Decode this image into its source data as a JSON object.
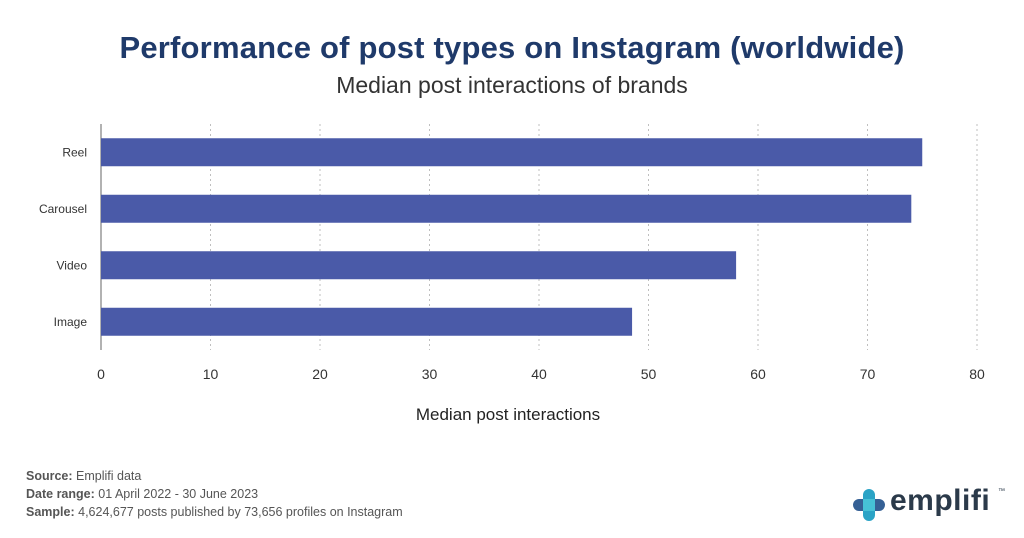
{
  "header": {
    "title": "Performance of post types on Instagram (worldwide)",
    "subtitle": "Median post interactions of brands"
  },
  "chart_data": {
    "type": "bar",
    "orientation": "horizontal",
    "categories": [
      "Reel",
      "Carousel",
      "Video",
      "Image"
    ],
    "values": [
      75,
      74,
      58,
      48.5
    ],
    "xlabel": "Median post interactions",
    "ylabel": "",
    "xlim": [
      0,
      80
    ],
    "xticks": [
      "0",
      "10",
      "20",
      "30",
      "40",
      "50",
      "60",
      "70",
      "80"
    ],
    "grid": "vertical-dotted",
    "bar_color": "#4a5aa8"
  },
  "footer": {
    "source_label": "Source:",
    "source_value": "Emplifi data",
    "date_label": "Date range:",
    "date_value": "01 April 2022 - 30 June 2023",
    "sample_label": "Sample:",
    "sample_value": "4,624,677 posts published by 73,656 profiles on Instagram"
  },
  "brand": {
    "name": "emplifi",
    "icon": "emplifi-logo-mark-icon",
    "colors": [
      "#2aa3c6",
      "#1f4f8a",
      "#46c1d6",
      "#2b3a4a"
    ]
  }
}
